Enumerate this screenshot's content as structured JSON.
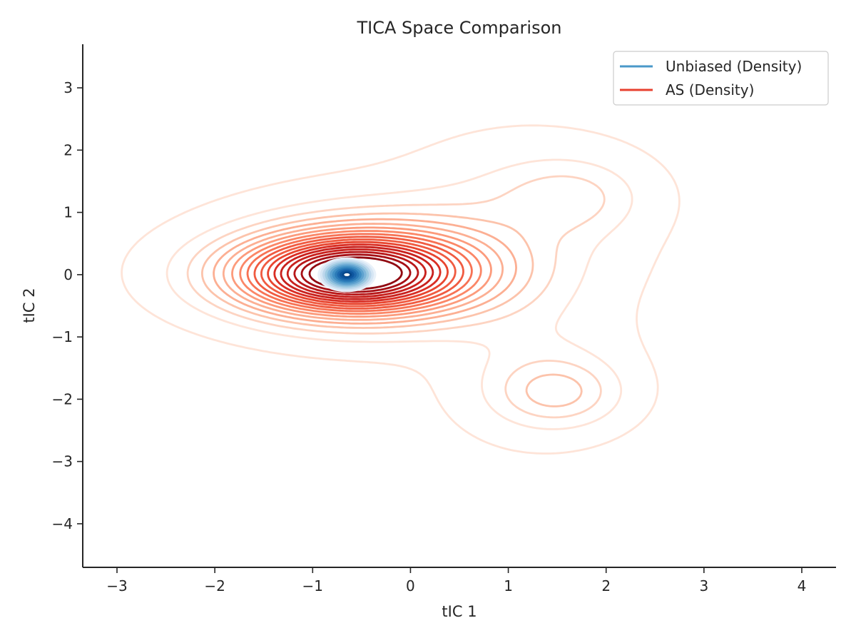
{
  "chart_data": {
    "type": "contour",
    "title": "TICA Space Comparison",
    "xlabel": "tIC 1",
    "ylabel": "tIC 2",
    "xlim": [
      -3.35,
      4.35
    ],
    "ylim": [
      -4.7,
      3.7
    ],
    "xticks": [
      -3,
      -2,
      -1,
      0,
      1,
      2,
      3,
      4
    ],
    "yticks": [
      -4,
      -3,
      -2,
      -1,
      0,
      1,
      2,
      3
    ],
    "xtick_labels": [
      "−3",
      "−2",
      "−1",
      "0",
      "1",
      "2",
      "3",
      "4"
    ],
    "ytick_labels": [
      "−4",
      "−3",
      "−2",
      "−1",
      "0",
      "1",
      "2",
      "3"
    ],
    "grid": false,
    "legend": {
      "placement": "upper right",
      "entries": [
        {
          "label": "Unbiased (Density)",
          "color": "#4a98c9"
        },
        {
          "label": "AS (Density)",
          "color": "#e8412f"
        }
      ]
    },
    "series": [
      {
        "name": "Unbiased (Density)",
        "kind": "filled-density",
        "colormap": "Blues",
        "mode": {
          "x": -0.65,
          "y": 0.0
        },
        "spread": {
          "sx": 0.3,
          "sy": 0.14
        }
      },
      {
        "name": "AS (Density)",
        "kind": "contour-lines",
        "colormap": "Reds",
        "levels": 18,
        "modes": [
          {
            "x": -0.65,
            "y": 0.0
          },
          {
            "x": 1.5,
            "y": -1.9
          },
          {
            "x": 1.65,
            "y": 1.25
          }
        ]
      }
    ]
  }
}
